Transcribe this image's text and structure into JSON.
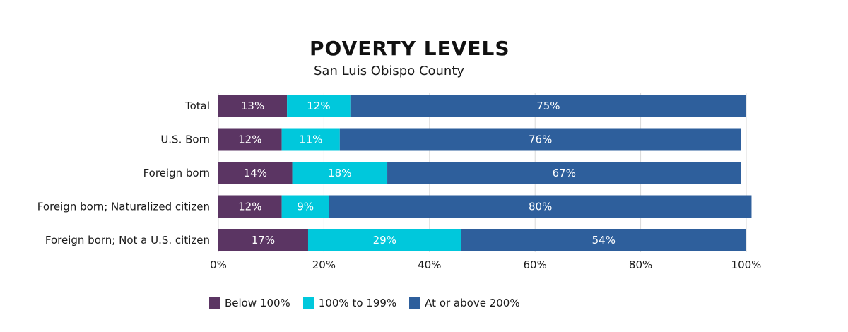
{
  "chart_data": {
    "type": "bar",
    "orientation": "horizontal",
    "stacked": true,
    "title": "POVERTY LEVELS",
    "subtitle": "San Luis Obispo County",
    "categories": [
      "Total",
      "U.S. Born",
      "Foreign born",
      "Foreign born; Naturalized citizen",
      "Foreign born; Not a U.S. citizen"
    ],
    "series": [
      {
        "name": "Below 100%",
        "color": "#5B3563",
        "values": [
          13,
          12,
          14,
          12,
          17
        ],
        "labels": [
          "13%",
          "12%",
          "14%",
          "12%",
          "17%"
        ]
      },
      {
        "name": "100% to 199%",
        "color": "#00C8DC",
        "values": [
          12,
          11,
          18,
          9,
          29
        ],
        "labels": [
          "12%",
          "11%",
          "18%",
          "9%",
          "29%"
        ]
      },
      {
        "name": "At or above 200%",
        "color": "#2E5F9C",
        "values": [
          75,
          76,
          67,
          80,
          54
        ],
        "labels": [
          "75%",
          "76%",
          "67%",
          "80%",
          "54%"
        ]
      }
    ],
    "xlim": [
      0,
      100
    ],
    "x_ticks": [
      "0%",
      "20%",
      "40%",
      "60%",
      "80%",
      "100%"
    ],
    "grid": true,
    "legend_position": "bottom"
  }
}
